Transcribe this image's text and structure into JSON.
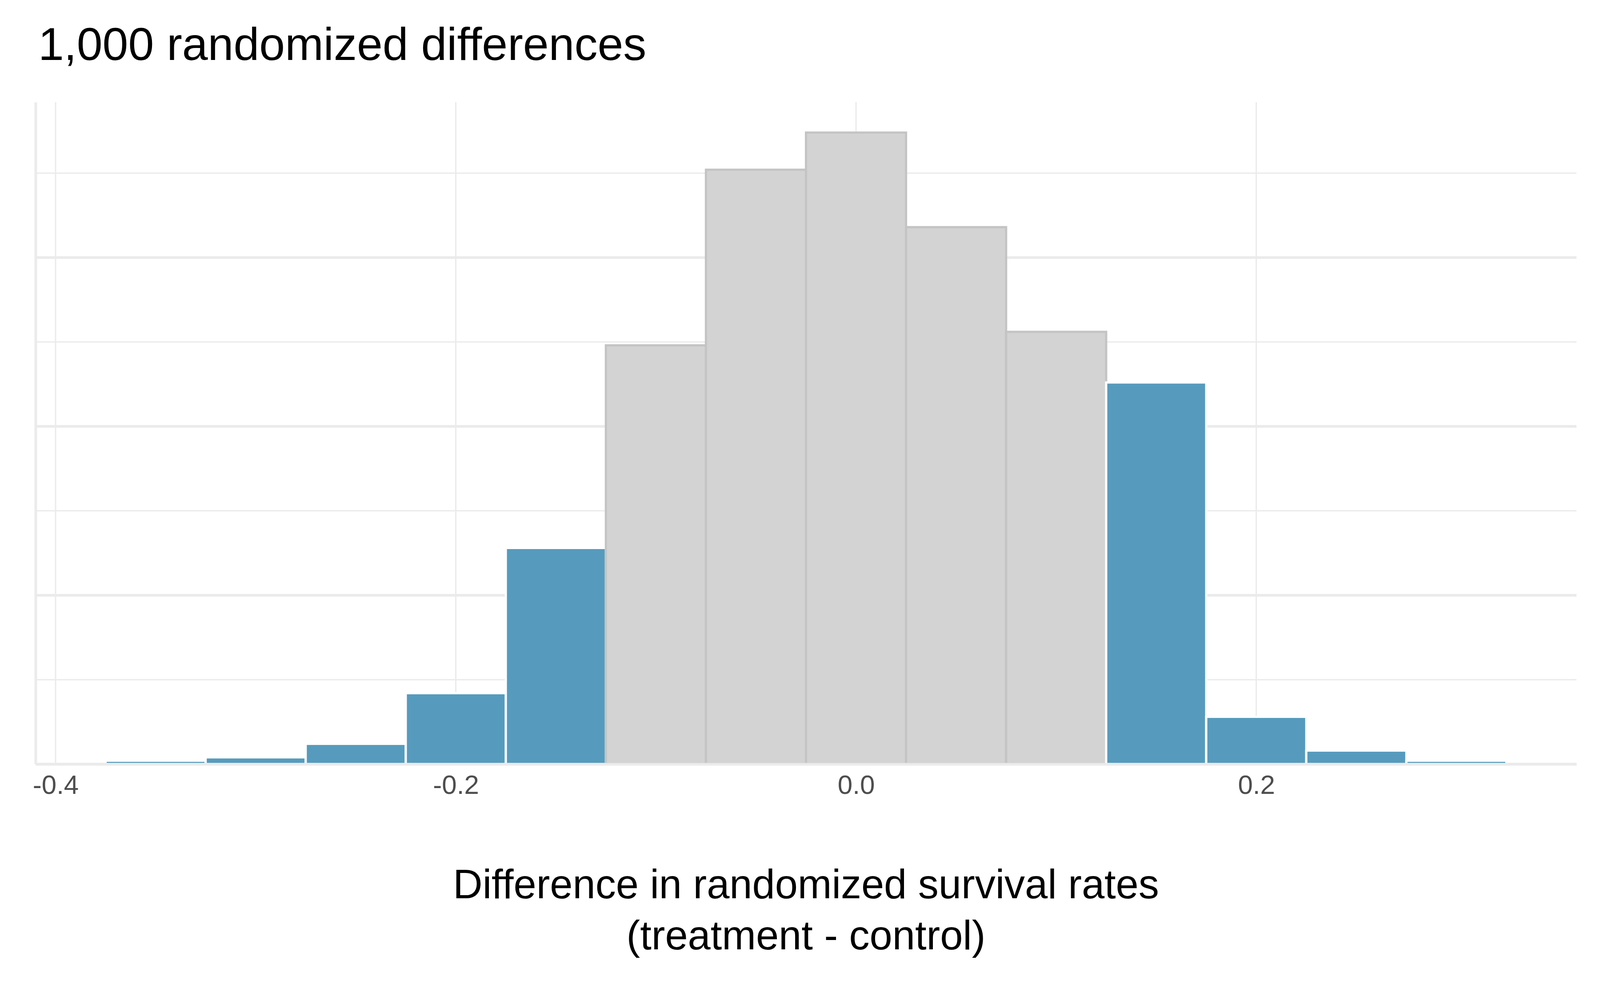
{
  "chart_data": {
    "type": "histogram",
    "title": "1,000 randomized differences",
    "x_label": "Difference in randomized survival rates\n(treatment - control)",
    "bins": [
      -0.375,
      -0.325,
      -0.275,
      -0.225,
      -0.175,
      -0.125,
      -0.075,
      -0.025,
      0.025,
      0.075,
      0.125,
      0.175,
      0.225,
      0.275,
      0.325
    ],
    "counts": [
      1,
      2,
      6,
      21,
      64,
      124,
      176,
      187,
      159,
      128,
      113,
      14,
      4,
      1
    ],
    "colors": [
      "#569BBD",
      "#569BBD",
      "#569BBD",
      "#569BBD",
      "#569BBD",
      "#D3D3D3",
      "#D3D3D3",
      "#D3D3D3",
      "#D3D3D3",
      "#D3D3D3",
      "#569BBD",
      "#569BBD",
      "#569BBD",
      "#569BBD"
    ],
    "xlim": [
      -0.41,
      0.36
    ],
    "xticks": [
      -0.4,
      -0.2,
      {
        "value": 0,
        "label": "0.0"
      },
      0.2
    ],
    "ylim": [
      0,
      196
    ],
    "yticks": [
      0,
      25,
      50,
      75,
      100,
      125,
      150,
      175
    ],
    "tick_labels": "x",
    "grid": true
  }
}
